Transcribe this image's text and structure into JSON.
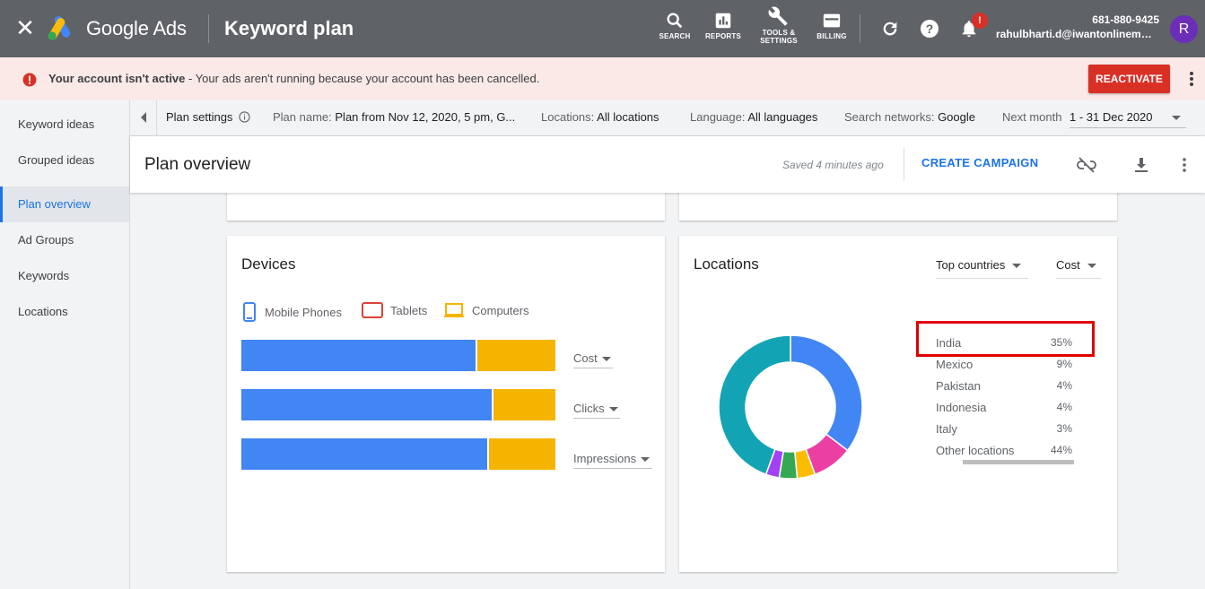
{
  "topbar": {
    "brand": "Google Ads",
    "title": "Keyword plan",
    "tools": [
      {
        "icon": "search-icon",
        "label": "SEARCH"
      },
      {
        "icon": "reports-icon",
        "label": "REPORTS"
      },
      {
        "icon": "wrench-icon",
        "label": "TOOLS &",
        "label2": "SETTINGS"
      },
      {
        "icon": "billing-icon",
        "label": "BILLING"
      }
    ],
    "notification_badge": "!",
    "phone": "681-880-9425",
    "email": "rahulbharti.d@iwantonlinemark…",
    "avatar_letter": "R"
  },
  "alert": {
    "bold": "Your account isn't active",
    "message": " - Your ads aren't running because your account has been cancelled.",
    "button": "REACTIVATE"
  },
  "sidebar": {
    "items": [
      {
        "label": "Keyword ideas"
      },
      {
        "label": "Grouped ideas"
      },
      {
        "label": "Plan overview"
      },
      {
        "label": "Ad Groups"
      },
      {
        "label": "Keywords"
      },
      {
        "label": "Locations"
      }
    ]
  },
  "settings": {
    "plan_settings": "Plan settings",
    "plan_name_label": "Plan name:",
    "plan_name": "Plan from Nov 12, 2020, 5 pm, G...",
    "locations_label": "Locations:",
    "locations": "All locations",
    "language_label": "Language:",
    "language": "All languages",
    "networks_label": "Search networks:",
    "networks": "Google",
    "period_label": "Next month",
    "date_range": "1 - 31 Dec 2020"
  },
  "overview": {
    "title": "Plan overview",
    "saved": "Saved 4 minutes ago",
    "create_campaign": "CREATE CAMPAIGN"
  },
  "devices": {
    "title": "Devices",
    "legend": [
      "Mobile Phones",
      "Tablets",
      "Computers"
    ],
    "metrics": [
      "Cost",
      "Clicks",
      "Impressions"
    ],
    "shares": [
      {
        "mobile": 0.747,
        "tablet": 0.005,
        "computer": 0.248
      },
      {
        "mobile": 0.797,
        "tablet": 0.005,
        "computer": 0.198
      },
      {
        "mobile": 0.784,
        "tablet": 0.005,
        "computer": 0.211
      }
    ]
  },
  "locations": {
    "title": "Locations",
    "scope_dropdown": "Top countries",
    "metric_dropdown": "Cost",
    "rows": [
      {
        "name": "India",
        "pct": "35%"
      },
      {
        "name": "Mexico",
        "pct": "9%"
      },
      {
        "name": "Pakistan",
        "pct": "4%"
      },
      {
        "name": "Indonesia",
        "pct": "4%"
      },
      {
        "name": "Italy",
        "pct": "3%"
      },
      {
        "name": "Other locations",
        "pct": "44%"
      }
    ]
  },
  "colors": {
    "mobile": "#4285f4",
    "tablet": "#db4437",
    "computer": "#f4b400",
    "donut": [
      "#4285f4",
      "#ec3fa4",
      "#fbbc04",
      "#34a853",
      "#a142f4",
      "#12a4b4"
    ]
  },
  "chart_data": {
    "type": "pie",
    "categories": [
      "India",
      "Mexico",
      "Pakistan",
      "Indonesia",
      "Italy",
      "Other locations"
    ],
    "values": [
      35,
      9,
      4,
      4,
      3,
      44
    ]
  }
}
